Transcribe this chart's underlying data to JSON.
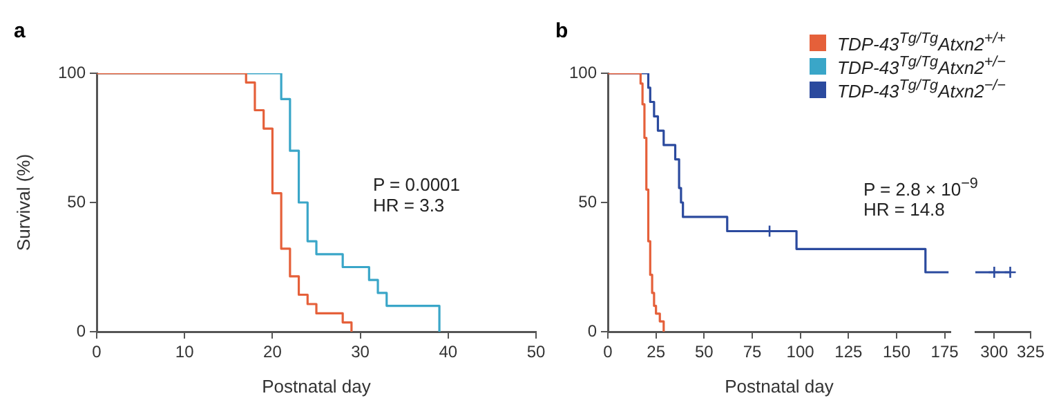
{
  "chart_data": [
    {
      "type": "step",
      "title": "a",
      "xlabel": "Postnatal day",
      "ylabel": "Survival (%)",
      "xlim": [
        0,
        50
      ],
      "xticks": [
        0,
        10,
        20,
        30,
        40,
        50
      ],
      "ylim": [
        0,
        100
      ],
      "yticks": [
        0,
        50,
        100
      ],
      "grid": false,
      "legend": false,
      "annotations": [
        "P = 0.0001",
        "HR = 3.3"
      ],
      "series": [
        {
          "color": "#e5603a",
          "x": [
            0,
            17,
            18,
            19,
            20,
            21,
            22,
            23,
            24,
            25,
            28,
            29
          ],
          "values": [
            100,
            96.4,
            85.7,
            78.6,
            53.6,
            32.1,
            21.4,
            14.3,
            10.7,
            7.1,
            3.6,
            0
          ]
        },
        {
          "color": "#3aa6c8",
          "x": [
            0,
            21,
            22,
            23,
            24,
            25,
            28,
            31,
            32,
            33,
            39
          ],
          "values": [
            100,
            90,
            70,
            50,
            35,
            30,
            25,
            20,
            15,
            10,
            0
          ]
        }
      ]
    },
    {
      "type": "step",
      "title": "b",
      "xlabel": "Postnatal day",
      "xlim": [
        0,
        178
      ],
      "xticks": [
        0,
        25,
        50,
        75,
        100,
        125,
        150,
        175
      ],
      "ylim": [
        0,
        100
      ],
      "yticks": [
        0,
        50,
        100
      ],
      "grid": false,
      "legend": "top right",
      "annotations": [
        "P = 2.8 × 10$^{−9}$",
        "HR = 14.8"
      ],
      "series": [
        {
          "name": "TDP-43$^{Tg/Tg}$Atxn2$^{+/+}$",
          "color": "#e5603a",
          "x": [
            0,
            17,
            18,
            19,
            20,
            21,
            22,
            23,
            24,
            25,
            27,
            29
          ],
          "values": [
            100,
            96,
            88,
            75,
            55,
            35,
            22,
            15,
            10,
            7,
            4,
            0
          ]
        },
        {
          "name": "TDP-43$^{Tg/Tg}$Atxn2$^{+/−}$",
          "color": "#3aa6c8"
        },
        {
          "name": "TDP-43$^{Tg/Tg}$Atxn2$^{−/−}$",
          "color": "#2b4a9e",
          "x": [
            0,
            21,
            22,
            24,
            26,
            29,
            35,
            37,
            38,
            39,
            62,
            98,
            165,
            177
          ],
          "values": [
            100,
            94.4,
            88.9,
            83.3,
            77.8,
            72.2,
            66.7,
            55.6,
            50,
            44.4,
            38.9,
            32,
            23,
            23
          ]
        },
        {
          "type": "scatter",
          "marker": "cross",
          "color": "#2b4a9e",
          "x": [
            84
          ],
          "values": [
            38.9
          ]
        }
      ]
    },
    {
      "type": "step",
      "xlim": [
        287,
        325
      ],
      "xticks": [
        300,
        325
      ],
      "ylim": [
        0,
        100
      ],
      "grid": false,
      "legend": false,
      "tick_labels": "x",
      "series": [
        {
          "color": "#2b4a9e",
          "x": [
            287,
            311
          ],
          "values": [
            23,
            23
          ]
        },
        {
          "type": "scatter",
          "marker": "cross",
          "color": "#2b4a9e",
          "x": [
            300,
            311
          ],
          "values": [
            23,
            23
          ]
        }
      ]
    }
  ]
}
